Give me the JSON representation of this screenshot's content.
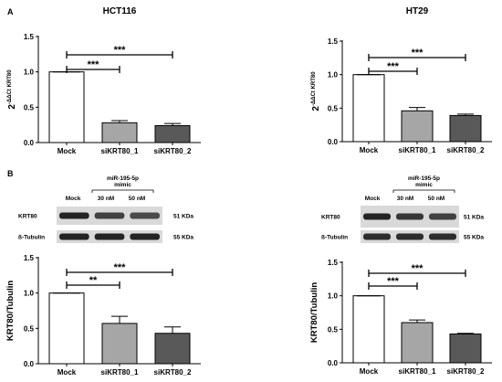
{
  "panel_labels": [
    "A",
    "B"
  ],
  "western_blots": [
    {
      "lanes": [
        "Mock",
        "30 nM",
        "50 nM"
      ],
      "treatment": [
        "miR-195-5p",
        "mimic"
      ],
      "rows": [
        {
          "protein": "KRT80",
          "size": "51 KDa"
        },
        {
          "protein": "ß-Tubulin",
          "size": "55 KDa"
        }
      ]
    },
    {
      "lanes": [
        "Mock",
        "30 nM",
        "50 nM"
      ],
      "treatment": [
        "miR-195-5p",
        "mimic"
      ],
      "rows": [
        {
          "protein": "KRT80",
          "size": "51 KDa"
        },
        {
          "protein": "ß-Tubulin",
          "size": "55 KDa"
        }
      ]
    }
  ],
  "chart_data": [
    {
      "type": "bar",
      "title": "HCT116",
      "ylabel": "2-ΔΔCt KRT80",
      "categories": [
        "Mock",
        "siKRT80_1",
        "siKRT80_2"
      ],
      "values": [
        1.0,
        0.28,
        0.24
      ],
      "errors": [
        0.0,
        0.03,
        0.03
      ],
      "bar_colors": [
        "#ffffff",
        "#a6a6a6",
        "#595959"
      ],
      "ylim": [
        0,
        1.5
      ],
      "yticks": [
        "0.0",
        "0.5",
        "1.0",
        "1.5"
      ],
      "significance": [
        {
          "from": 0,
          "to": 1,
          "label": "***"
        },
        {
          "from": 0,
          "to": 2,
          "label": "***"
        }
      ]
    },
    {
      "type": "bar",
      "title": "HT29",
      "ylabel": "2-ΔΔCt KRT80",
      "categories": [
        "Mock",
        "siKRT80_1",
        "siKRT80_2"
      ],
      "values": [
        1.0,
        0.46,
        0.39
      ],
      "errors": [
        0.0,
        0.05,
        0.02
      ],
      "bar_colors": [
        "#ffffff",
        "#a6a6a6",
        "#595959"
      ],
      "ylim": [
        0,
        1.5
      ],
      "yticks": [
        "0.0",
        "0.5",
        "1.0",
        "1.5"
      ],
      "significance": [
        {
          "from": 0,
          "to": 1,
          "label": "***"
        },
        {
          "from": 0,
          "to": 2,
          "label": "***"
        }
      ]
    },
    {
      "type": "bar",
      "title": "",
      "ylabel": "KRT80/Tubulin",
      "categories": [
        "Mock",
        "siKRT80_1",
        "siKRT80_2"
      ],
      "values": [
        1.0,
        0.57,
        0.43
      ],
      "errors": [
        0.0,
        0.1,
        0.09
      ],
      "bar_colors": [
        "#ffffff",
        "#a6a6a6",
        "#595959"
      ],
      "ylim": [
        0,
        1.5
      ],
      "yticks": [
        "0.0",
        "0.5",
        "1.0",
        "1.5"
      ],
      "significance": [
        {
          "from": 0,
          "to": 1,
          "label": "**"
        },
        {
          "from": 0,
          "to": 2,
          "label": "***"
        }
      ]
    },
    {
      "type": "bar",
      "title": "",
      "ylabel": "KRT80/Tubulin",
      "categories": [
        "Mock",
        "siKRT80_1",
        "siKRT80_2"
      ],
      "values": [
        1.0,
        0.6,
        0.43
      ],
      "errors": [
        0.0,
        0.04,
        0.01
      ],
      "bar_colors": [
        "#ffffff",
        "#a6a6a6",
        "#595959"
      ],
      "ylim": [
        0,
        1.5
      ],
      "yticks": [
        "0.0",
        "0.5",
        "1.0",
        "1.5"
      ],
      "significance": [
        {
          "from": 0,
          "to": 1,
          "label": "***"
        },
        {
          "from": 0,
          "to": 2,
          "label": "***"
        }
      ]
    }
  ]
}
